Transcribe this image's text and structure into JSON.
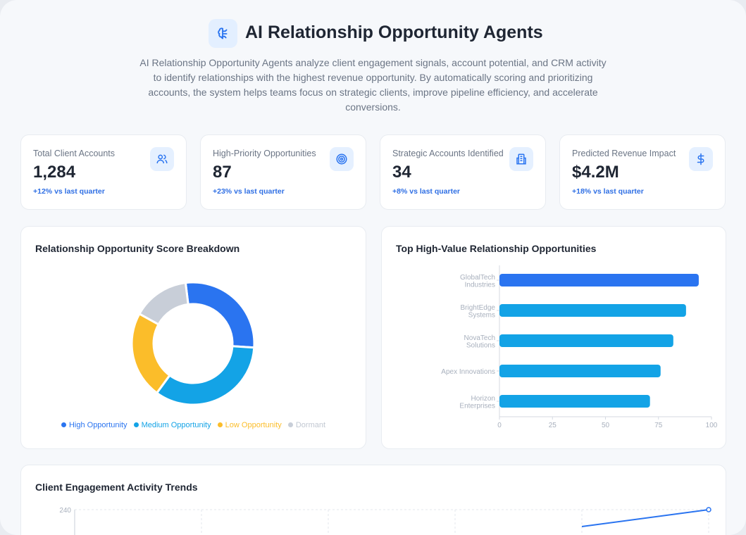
{
  "header": {
    "title": "AI Relationship Opportunity Agents",
    "icon": "brain-icon",
    "description": "AI Relationship Opportunity Agents analyze client engagement signals, account potential, and CRM activity to identify relationships with the highest revenue opportunity. By automatically scoring and prioritizing accounts, the system helps teams focus on strategic clients, improve pipeline efficiency, and accelerate conversions."
  },
  "kpis": [
    {
      "label": "Total Client Accounts",
      "value": "1,284",
      "change": "+12% vs last quarter",
      "icon": "users-icon"
    },
    {
      "label": "High-Priority Opportunities",
      "value": "87",
      "change": "+23% vs last quarter",
      "icon": "target-icon"
    },
    {
      "label": "Strategic Accounts Identified",
      "value": "34",
      "change": "+8% vs last quarter",
      "icon": "building-icon"
    },
    {
      "label": "Predicted Revenue Impact",
      "value": "$4.2M",
      "change": "+18% vs last quarter",
      "icon": "dollar-icon"
    }
  ],
  "colors": {
    "accent": "#2a74f0",
    "cyan": "#13a3e6",
    "yellow": "#fbbd2a",
    "gray": "#c8ced8"
  },
  "chart_data": [
    {
      "type": "pie",
      "title": "Relationship Opportunity Score Breakdown",
      "categories": [
        "High Opportunity",
        "Medium Opportunity",
        "Low Opportunity",
        "Dormant"
      ],
      "values": [
        28,
        34,
        23,
        15
      ],
      "colors": [
        "#2a74f0",
        "#13a3e6",
        "#fbbd2a",
        "#c8ced8"
      ],
      "legend": "bottom"
    },
    {
      "type": "bar",
      "orientation": "horizontal",
      "title": "Top High-Value Relationship Opportunities",
      "categories": [
        [
          "GlobalTech",
          "Industries"
        ],
        [
          "BrightEdge",
          "Systems"
        ],
        [
          "NovaTech",
          "Solutions"
        ],
        [
          "Apex Innovations"
        ],
        [
          "Horizon",
          "Enterprises"
        ]
      ],
      "values": [
        94,
        88,
        82,
        76,
        71
      ],
      "colors": [
        "#2a74f0",
        "#13a3e6",
        "#13a3e6",
        "#13a3e6",
        "#13a3e6"
      ],
      "xlim": [
        0,
        100
      ],
      "xticks": [
        "0",
        "25",
        "50",
        "75",
        "100"
      ],
      "grid": false
    },
    {
      "type": "line",
      "title": "Client Engagement Activity Trends",
      "yticks": [
        "240"
      ],
      "series": [
        {
          "values": [
            null,
            null,
            null,
            null,
            200,
            240
          ]
        }
      ],
      "grid": true
    }
  ]
}
